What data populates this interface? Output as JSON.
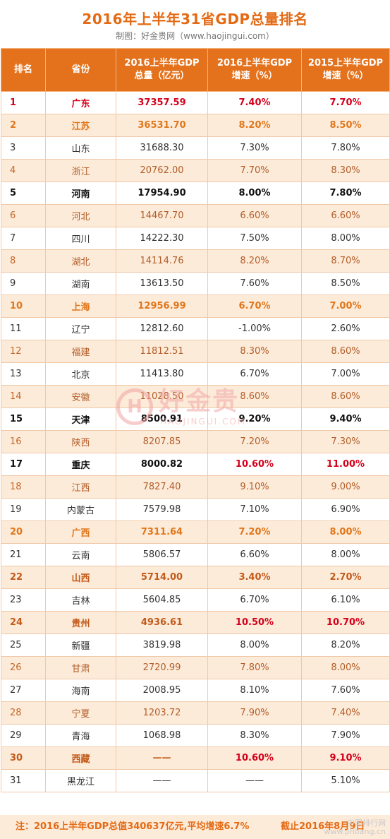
{
  "title": "2016年上半年31省GDP总量排名",
  "subtitle": "制图：好金贵网（www.haojingui.com）",
  "headers": {
    "rank": "排名",
    "province": "省份",
    "gdp_line1": "2016上半年GDP",
    "gdp_line2": "总量（亿元）",
    "g16_line1": "2016上半年GDP",
    "g16_line2": "增速（%）",
    "g15_line1": "2015上半年GDP",
    "g15_line2": "增速（%）"
  },
  "rows": [
    {
      "rank": "1",
      "province": "广东",
      "gdp": "37357.59",
      "g16": "7.40%",
      "g15": "7.70%"
    },
    {
      "rank": "2",
      "province": "江苏",
      "gdp": "36531.70",
      "g16": "8.20%",
      "g15": "8.50%"
    },
    {
      "rank": "3",
      "province": "山东",
      "gdp": "31688.30",
      "g16": "7.30%",
      "g15": "7.80%"
    },
    {
      "rank": "4",
      "province": "浙江",
      "gdp": "20762.00",
      "g16": "7.70%",
      "g15": "8.30%"
    },
    {
      "rank": "5",
      "province": "河南",
      "gdp": "17954.90",
      "g16": "8.00%",
      "g15": "7.80%"
    },
    {
      "rank": "6",
      "province": "河北",
      "gdp": "14467.70",
      "g16": "6.60%",
      "g15": "6.60%"
    },
    {
      "rank": "7",
      "province": "四川",
      "gdp": "14222.30",
      "g16": "7.50%",
      "g15": "8.00%"
    },
    {
      "rank": "8",
      "province": "湖北",
      "gdp": "14114.76",
      "g16": "8.20%",
      "g15": "8.70%"
    },
    {
      "rank": "9",
      "province": "湖南",
      "gdp": "13613.50",
      "g16": "7.60%",
      "g15": "8.50%"
    },
    {
      "rank": "10",
      "province": "上海",
      "gdp": "12956.99",
      "g16": "6.70%",
      "g15": "7.00%"
    },
    {
      "rank": "11",
      "province": "辽宁",
      "gdp": "12812.60",
      "g16": "-1.00%",
      "g15": "2.60%"
    },
    {
      "rank": "12",
      "province": "福建",
      "gdp": "11812.51",
      "g16": "8.30%",
      "g15": "8.60%"
    },
    {
      "rank": "13",
      "province": "北京",
      "gdp": "11413.80",
      "g16": "6.70%",
      "g15": "7.00%"
    },
    {
      "rank": "14",
      "province": "安徽",
      "gdp": "11028.50",
      "g16": "8.60%",
      "g15": "8.60%"
    },
    {
      "rank": "15",
      "province": "天津",
      "gdp": "8500.91",
      "g16": "9.20%",
      "g15": "9.40%"
    },
    {
      "rank": "16",
      "province": "陕西",
      "gdp": "8207.85",
      "g16": "7.20%",
      "g15": "7.30%"
    },
    {
      "rank": "17",
      "province": "重庆",
      "gdp": "8000.82",
      "g16": "10.60%",
      "g15": "11.00%"
    },
    {
      "rank": "18",
      "province": "江西",
      "gdp": "7827.40",
      "g16": "9.10%",
      "g15": "9.00%"
    },
    {
      "rank": "19",
      "province": "内蒙古",
      "gdp": "7579.98",
      "g16": "7.10%",
      "g15": "6.90%"
    },
    {
      "rank": "20",
      "province": "广西",
      "gdp": "7311.64",
      "g16": "7.20%",
      "g15": "8.00%"
    },
    {
      "rank": "21",
      "province": "云南",
      "gdp": "5806.57",
      "g16": "6.60%",
      "g15": "8.00%"
    },
    {
      "rank": "22",
      "province": "山西",
      "gdp": "5714.00",
      "g16": "3.40%",
      "g15": "2.70%"
    },
    {
      "rank": "23",
      "province": "吉林",
      "gdp": "5604.85",
      "g16": "6.70%",
      "g15": "6.10%"
    },
    {
      "rank": "24",
      "province": "贵州",
      "gdp": "4936.61",
      "g16": "10.50%",
      "g15": "10.70%"
    },
    {
      "rank": "25",
      "province": "新疆",
      "gdp": "3819.98",
      "g16": "8.00%",
      "g15": "8.20%"
    },
    {
      "rank": "26",
      "province": "甘肃",
      "gdp": "2720.99",
      "g16": "7.80%",
      "g15": "8.00%"
    },
    {
      "rank": "27",
      "province": "海南",
      "gdp": "2008.95",
      "g16": "8.10%",
      "g15": "7.60%"
    },
    {
      "rank": "28",
      "province": "宁夏",
      "gdp": "1203.72",
      "g16": "7.90%",
      "g15": "7.40%"
    },
    {
      "rank": "29",
      "province": "青海",
      "gdp": "1068.98",
      "g16": "8.30%",
      "g15": "7.90%"
    },
    {
      "rank": "30",
      "province": "西藏",
      "gdp": "——",
      "g16": "10.60%",
      "g15": "9.10%"
    },
    {
      "rank": "31",
      "province": "黑龙江",
      "gdp": "——",
      "g16": "——",
      "g15": "5.10%"
    }
  ],
  "footer": {
    "note": "注：2016上半年GDP总值340637亿元,平均增速6.7%",
    "date": "截止2016年8月9日"
  },
  "watermark": {
    "logo_char": "H",
    "name": "好金贵",
    "domain": "HAOJINGUI.COM"
  },
  "corner_watermark": {
    "line1": "中国排行网",
    "line2": "www.phbang.cn"
  },
  "colors": {
    "header_bg": "#e4721d",
    "title": "#e46a14",
    "stripe": "#fdebd9",
    "highlight_red": "#d4001b",
    "highlight_orange": "#e0771c"
  }
}
